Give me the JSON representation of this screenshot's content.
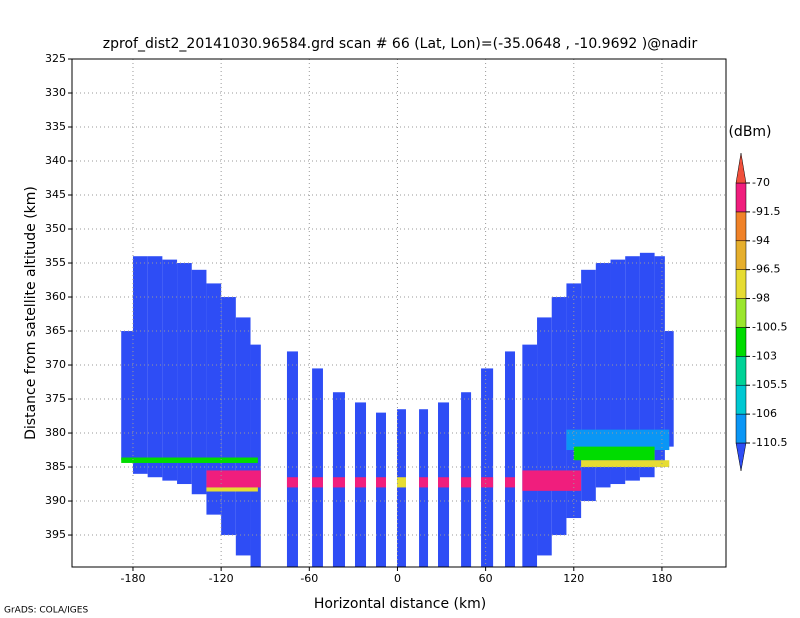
{
  "chart_data": {
    "type": "heatmap",
    "title": "zprof_dist2_20141030.96584.grd  scan # 66  (Lat, Lon)=(-35.0648 , -10.9692 )@nadir",
    "x_label": "Horizontal distance (km)",
    "y_label": "Distance from satellite altitude (km)",
    "footer": "GrADS: COLA/IGES",
    "colorbar_label": "(dBm)",
    "xlim": [
      -221.5,
      223.6
    ],
    "xticks": [
      -180,
      -120,
      -60,
      0,
      60,
      120,
      180
    ],
    "ylim": [
      325,
      399.7
    ],
    "yticks": [
      325,
      330,
      335,
      340,
      345,
      350,
      355,
      360,
      365,
      370,
      375,
      380,
      385,
      390,
      395
    ],
    "invert_y": true,
    "grid": true,
    "levels": [
      -110.5,
      -106,
      -105.5,
      -103,
      -100.5,
      -98,
      -96.5,
      -94,
      -91.5,
      -70
    ],
    "colors": [
      "#2e4df5",
      "#0a96f5",
      "#00c8d2",
      "#00d296",
      "#00dc00",
      "#9be62d",
      "#e6dc32",
      "#e6af2d",
      "#f08228",
      "#f01e7d",
      "#f0503c"
    ],
    "echoes": [
      {
        "x": [
          -188,
          -180
        ],
        "altitude": [
          365,
          384
        ],
        "value": -115
      },
      {
        "x": [
          -180,
          -170
        ],
        "altitude": [
          354,
          386
        ],
        "value": -115
      },
      {
        "x": [
          -170,
          -160
        ],
        "altitude": [
          354,
          386.5
        ],
        "value": -115
      },
      {
        "x": [
          -160,
          -150
        ],
        "altitude": [
          354.5,
          387
        ],
        "value": -115
      },
      {
        "x": [
          -150,
          -140
        ],
        "altitude": [
          355,
          387.5
        ],
        "value": -115
      },
      {
        "x": [
          -140,
          -130
        ],
        "altitude": [
          356,
          389
        ],
        "value": -115
      },
      {
        "x": [
          -130,
          -120
        ],
        "altitude": [
          358,
          392
        ],
        "value": -115
      },
      {
        "x": [
          -120,
          -110
        ],
        "altitude": [
          360,
          395
        ],
        "value": -115
      },
      {
        "x": [
          -110,
          -100
        ],
        "altitude": [
          363,
          398
        ],
        "value": -115
      },
      {
        "x": [
          -100,
          -93
        ],
        "altitude": [
          367,
          399.7
        ],
        "value": -115
      },
      {
        "x": [
          -75.2,
          -67.7
        ],
        "altitude": [
          368,
          399.7
        ],
        "value": -115
      },
      {
        "x": [
          -58.1,
          -50.7
        ],
        "altitude": [
          370.5,
          399.7
        ],
        "value": -115
      },
      {
        "x": [
          -43.9,
          -35.7
        ],
        "altitude": [
          374,
          399.7
        ],
        "value": -115
      },
      {
        "x": [
          -28.9,
          -21.4
        ],
        "altitude": [
          375.5,
          399.7
        ],
        "value": -115
      },
      {
        "x": [
          -14.6,
          -7.8
        ],
        "altitude": [
          377,
          399.7
        ],
        "value": -115
      },
      {
        "x": [
          -0.3,
          5.8
        ],
        "altitude": [
          376.5,
          399.7
        ],
        "value": -115
      },
      {
        "x": [
          14.7,
          20.8
        ],
        "altitude": [
          376.5,
          399.7
        ],
        "value": -115
      },
      {
        "x": [
          27.6,
          35.1
        ],
        "altitude": [
          375.5,
          399.7
        ],
        "value": -115
      },
      {
        "x": [
          43.3,
          50.1
        ],
        "altitude": [
          374,
          399.7
        ],
        "value": -115
      },
      {
        "x": [
          56.9,
          65.1
        ],
        "altitude": [
          370.5,
          399.7
        ],
        "value": -115
      },
      {
        "x": [
          73.2,
          80
        ],
        "altitude": [
          368,
          399.7
        ],
        "value": -115
      },
      {
        "x": [
          85,
          95
        ],
        "altitude": [
          367,
          399.7
        ],
        "value": -115
      },
      {
        "x": [
          95,
          105
        ],
        "altitude": [
          363,
          398
        ],
        "value": -115
      },
      {
        "x": [
          105,
          115
        ],
        "altitude": [
          360,
          395
        ],
        "value": -115
      },
      {
        "x": [
          115,
          125
        ],
        "altitude": [
          358,
          392.5
        ],
        "value": -115
      },
      {
        "x": [
          125,
          135
        ],
        "altitude": [
          356,
          390
        ],
        "value": -115
      },
      {
        "x": [
          135,
          145
        ],
        "altitude": [
          355,
          388
        ],
        "value": -115
      },
      {
        "x": [
          145,
          155
        ],
        "altitude": [
          354.5,
          387.5
        ],
        "value": -115
      },
      {
        "x": [
          155,
          165
        ],
        "altitude": [
          354,
          387
        ],
        "value": -115
      },
      {
        "x": [
          165,
          175
        ],
        "altitude": [
          353.5,
          386.5
        ],
        "value": -115
      },
      {
        "x": [
          175,
          182
        ],
        "altitude": [
          354,
          385
        ],
        "value": -115
      },
      {
        "x": [
          182,
          188
        ],
        "altitude": [
          365,
          382
        ],
        "value": -115
      },
      {
        "x": [
          -188,
          -95
        ],
        "altitude": [
          383.6,
          384.4
        ],
        "value": -101
      },
      {
        "x": [
          -130,
          -93
        ],
        "altitude": [
          385.5,
          388
        ],
        "value": -80
      },
      {
        "x": [
          -130,
          -95
        ],
        "altitude": [
          388,
          388.6
        ],
        "value": -97
      },
      {
        "x": [
          -75.2,
          -67.7
        ],
        "altitude": [
          386.5,
          388
        ],
        "value": -80
      },
      {
        "x": [
          -58.1,
          -50.7
        ],
        "altitude": [
          386.5,
          388
        ],
        "value": -80
      },
      {
        "x": [
          -43.9,
          -35.7
        ],
        "altitude": [
          386.5,
          388
        ],
        "value": -80
      },
      {
        "x": [
          -28.9,
          -21.4
        ],
        "altitude": [
          386.5,
          388
        ],
        "value": -80
      },
      {
        "x": [
          -14.6,
          -7.8
        ],
        "altitude": [
          386.5,
          388
        ],
        "value": -80
      },
      {
        "x": [
          -0.3,
          5.8
        ],
        "altitude": [
          386.5,
          388
        ],
        "value": -97
      },
      {
        "x": [
          14.7,
          20.8
        ],
        "altitude": [
          386.5,
          388
        ],
        "value": -80
      },
      {
        "x": [
          27.6,
          35.1
        ],
        "altitude": [
          386.5,
          388
        ],
        "value": -80
      },
      {
        "x": [
          43.3,
          50.1
        ],
        "altitude": [
          386.5,
          388
        ],
        "value": -80
      },
      {
        "x": [
          56.9,
          65.1
        ],
        "altitude": [
          386.5,
          388
        ],
        "value": -80
      },
      {
        "x": [
          73.2,
          80
        ],
        "altitude": [
          386.5,
          388
        ],
        "value": -80
      },
      {
        "x": [
          115,
          185
        ],
        "altitude": [
          379.5,
          382.5
        ],
        "value": -108
      },
      {
        "x": [
          120,
          175
        ],
        "altitude": [
          382,
          384
        ],
        "value": -102
      },
      {
        "x": [
          125,
          185
        ],
        "altitude": [
          384,
          385
        ],
        "value": -97
      },
      {
        "x": [
          85,
          125
        ],
        "altitude": [
          385.5,
          388.5
        ],
        "value": -80
      }
    ]
  }
}
